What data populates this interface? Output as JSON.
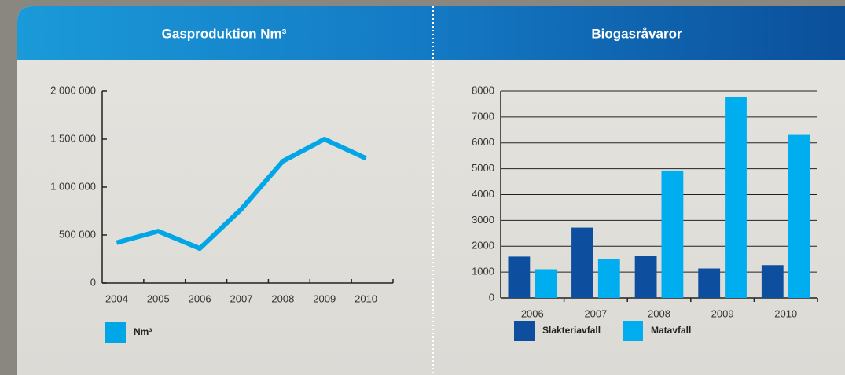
{
  "chart_data": [
    {
      "type": "line",
      "title": "Gasproduktion Nm³",
      "categories": [
        "2004",
        "2005",
        "2006",
        "2007",
        "2008",
        "2009",
        "2010"
      ],
      "series": [
        {
          "name": "Nm³",
          "color": "#00a6e6",
          "values": [
            420000,
            540000,
            360000,
            770000,
            1270000,
            1500000,
            1300000
          ]
        }
      ],
      "ylim": [
        0,
        2000000
      ],
      "yticks": [
        0,
        {
          "value": 500000,
          "label": "500 000"
        },
        {
          "value": 1000000,
          "label": "1 000 000"
        },
        {
          "value": 1500000,
          "label": "1 500 000"
        },
        {
          "value": 2000000,
          "label": "2 000 000"
        }
      ],
      "grid": false,
      "legend": "bottom-left"
    },
    {
      "type": "bar",
      "title": "Biogasråvaror",
      "categories": [
        "2006",
        "2007",
        "2008",
        "2009",
        "2010"
      ],
      "series": [
        {
          "name": "Slakteriavfall",
          "color": "#0d4f9e",
          "values": [
            1600,
            2720,
            1630,
            1140,
            1270
          ]
        },
        {
          "name": "Matavfall",
          "color": "#00aeef",
          "values": [
            1110,
            1500,
            4930,
            7780,
            6310
          ]
        }
      ],
      "ylim": [
        0,
        8000
      ],
      "yticks": [
        0,
        1000,
        2000,
        3000,
        4000,
        5000,
        6000,
        7000,
        8000
      ],
      "grid": true,
      "legend": "bottom-left"
    }
  ]
}
